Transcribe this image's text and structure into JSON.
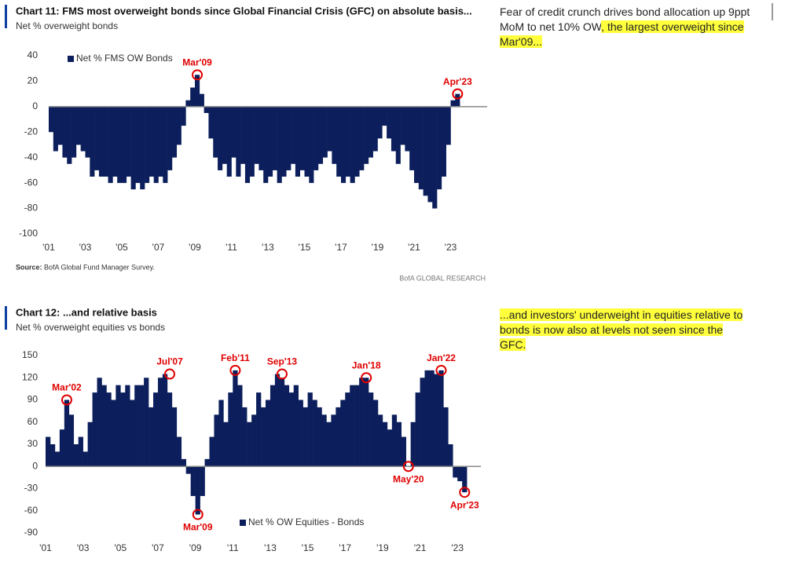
{
  "chart_data": [
    {
      "type": "bar",
      "title": "Chart 11: FMS most overweight bonds since Global Financial Crisis (GFC) on absolute basis...",
      "subtitle": "Net % overweight bonds",
      "series": [
        {
          "name": "Net % FMS OW Bonds",
          "color": "#0c1f5c",
          "values": [
            -20,
            -35,
            -30,
            -40,
            -45,
            -40,
            -30,
            -35,
            -40,
            -55,
            -50,
            -55,
            -55,
            -60,
            -55,
            -60,
            -60,
            -55,
            -65,
            -60,
            -65,
            -60,
            -55,
            -60,
            -55,
            -60,
            -50,
            -40,
            -30,
            -15,
            5,
            15,
            25,
            10,
            -5,
            -25,
            -40,
            -50,
            -45,
            -55,
            -40,
            -55,
            -45,
            -60,
            -55,
            -45,
            -50,
            -60,
            -55,
            -50,
            -60,
            -55,
            -50,
            -45,
            -55,
            -50,
            -55,
            -60,
            -50,
            -45,
            -40,
            -35,
            -45,
            -55,
            -60,
            -55,
            -60,
            -55,
            -50,
            -45,
            -40,
            -35,
            -25,
            -15,
            -25,
            -35,
            -45,
            -30,
            -35,
            -50,
            -60,
            -65,
            -70,
            -75,
            -80,
            -65,
            -55,
            -30,
            5,
            10
          ]
        }
      ],
      "x": [
        2001,
        2001.25,
        2001.5,
        2001.75,
        2002,
        2002.25,
        2002.5,
        2002.75,
        2003,
        2003.25,
        2003.5,
        2003.75,
        2004,
        2004.25,
        2004.5,
        2004.75,
        2005,
        2005.25,
        2005.5,
        2005.75,
        2006,
        2006.25,
        2006.5,
        2006.75,
        2007,
        2007.25,
        2007.5,
        2007.75,
        2008,
        2008.25,
        2008.5,
        2008.75,
        2009,
        2009.25,
        2009.5,
        2009.75,
        2010,
        2010.25,
        2010.5,
        2010.75,
        2011,
        2011.25,
        2011.5,
        2011.75,
        2012,
        2012.25,
        2012.5,
        2012.75,
        2013,
        2013.25,
        2013.5,
        2013.75,
        2014,
        2014.25,
        2014.5,
        2014.75,
        2015,
        2015.25,
        2015.5,
        2015.75,
        2016,
        2016.25,
        2016.5,
        2016.75,
        2017,
        2017.25,
        2017.5,
        2017.75,
        2018,
        2018.25,
        2018.5,
        2018.75,
        2019,
        2019.25,
        2019.5,
        2019.75,
        2020,
        2020.25,
        2020.5,
        2020.75,
        2021,
        2021.25,
        2021.5,
        2021.75,
        2022,
        2022.25,
        2022.5,
        2022.75,
        2023,
        2023.25
      ],
      "xlim": [
        2001,
        2025
      ],
      "ylim": [
        -100,
        40
      ],
      "yticks": [
        -100,
        -80,
        -60,
        -40,
        -20,
        0,
        20,
        40
      ],
      "xticks": [
        {
          "value": 2001,
          "label": "'01"
        },
        {
          "value": 2003,
          "label": "'03"
        },
        {
          "value": 2005,
          "label": "'05"
        },
        {
          "value": 2007,
          "label": "'07"
        },
        {
          "value": 2009,
          "label": "'09"
        },
        {
          "value": 2011,
          "label": "'11"
        },
        {
          "value": 2013,
          "label": "'13"
        },
        {
          "value": 2015,
          "label": "'15"
        },
        {
          "value": 2017,
          "label": "'17"
        },
        {
          "value": 2019,
          "label": "'19"
        },
        {
          "value": 2021,
          "label": "'21"
        },
        {
          "value": 2023,
          "label": "'23"
        }
      ],
      "legend": "upper left",
      "annotations": [
        {
          "text": "Mar'09",
          "x": 2009,
          "y": 25
        },
        {
          "text": "Apr'23",
          "x": 2023.25,
          "y": 10
        }
      ],
      "source_label": "Source:",
      "source": "BofA Global Fund Manager Survey.",
      "footer": "BofA GLOBAL RESEARCH",
      "note": [
        "Fear of credit crunch drives bond allocation up 9ppt MoM to net 10% OW",
        ", the largest overweight since Mar'09..."
      ]
    },
    {
      "type": "bar",
      "title": "Chart 12: ...and relative basis",
      "subtitle": "Net % overweight equities vs bonds",
      "series": [
        {
          "name": "Net % OW Equities - Bonds",
          "color": "#0c1f5c",
          "values": [
            40,
            30,
            20,
            50,
            90,
            70,
            30,
            40,
            20,
            60,
            100,
            120,
            110,
            100,
            90,
            110,
            100,
            110,
            90,
            110,
            110,
            120,
            80,
            100,
            120,
            125,
            100,
            80,
            40,
            10,
            -10,
            -40,
            -65,
            -40,
            10,
            40,
            70,
            90,
            60,
            100,
            130,
            110,
            80,
            60,
            70,
            100,
            80,
            90,
            110,
            125,
            120,
            110,
            100,
            110,
            90,
            80,
            100,
            90,
            80,
            70,
            60,
            70,
            80,
            90,
            100,
            110,
            110,
            120,
            120,
            100,
            90,
            70,
            60,
            50,
            70,
            60,
            40,
            0,
            60,
            100,
            120,
            130,
            130,
            125,
            130,
            80,
            30,
            -15,
            -20,
            -35
          ]
        }
      ],
      "x": [
        2001,
        2001.25,
        2001.5,
        2001.75,
        2002,
        2002.25,
        2002.5,
        2002.75,
        2003,
        2003.25,
        2003.5,
        2003.75,
        2004,
        2004.25,
        2004.5,
        2004.75,
        2005,
        2005.25,
        2005.5,
        2005.75,
        2006,
        2006.25,
        2006.5,
        2006.75,
        2007,
        2007.25,
        2007.5,
        2007.75,
        2008,
        2008.25,
        2008.5,
        2008.75,
        2009,
        2009.25,
        2009.5,
        2009.75,
        2010,
        2010.25,
        2010.5,
        2010.75,
        2011,
        2011.25,
        2011.5,
        2011.75,
        2012,
        2012.25,
        2012.5,
        2012.75,
        2013,
        2013.25,
        2013.5,
        2013.75,
        2014,
        2014.25,
        2014.5,
        2014.75,
        2015,
        2015.25,
        2015.5,
        2015.75,
        2016,
        2016.25,
        2016.5,
        2016.75,
        2017,
        2017.25,
        2017.5,
        2017.75,
        2018,
        2018.25,
        2018.5,
        2018.75,
        2019,
        2019.25,
        2019.5,
        2019.75,
        2020,
        2020.25,
        2020.5,
        2020.75,
        2021,
        2021.25,
        2021.5,
        2021.75,
        2022,
        2022.25,
        2022.5,
        2022.75,
        2023,
        2023.25
      ],
      "xlim": [
        2001,
        2024.25
      ],
      "ylim": [
        -90,
        150
      ],
      "yticks": [
        -90,
        -60,
        -30,
        0,
        30,
        60,
        90,
        120,
        150
      ],
      "xticks": [
        {
          "value": 2001,
          "label": "'01"
        },
        {
          "value": 2003,
          "label": "'03"
        },
        {
          "value": 2005,
          "label": "'05"
        },
        {
          "value": 2007,
          "label": "'07"
        },
        {
          "value": 2009,
          "label": "'09"
        },
        {
          "value": 2011,
          "label": "'11"
        },
        {
          "value": 2013,
          "label": "'13"
        },
        {
          "value": 2015,
          "label": "'15"
        },
        {
          "value": 2017,
          "label": "'17"
        },
        {
          "value": 2019,
          "label": "'19"
        },
        {
          "value": 2021,
          "label": "'21"
        },
        {
          "value": 2023,
          "label": "'23"
        }
      ],
      "legend": "lower center",
      "annotations": [
        {
          "text": "Mar'02",
          "x": 2002,
          "y": 90
        },
        {
          "text": "Jul'07",
          "x": 2007.5,
          "y": 125
        },
        {
          "text": "Mar'09",
          "x": 2009,
          "y": -65
        },
        {
          "text": "Feb'11",
          "x": 2011,
          "y": 130
        },
        {
          "text": "Sep'13",
          "x": 2013.5,
          "y": 125
        },
        {
          "text": "Jan'18",
          "x": 2018,
          "y": 120
        },
        {
          "text": "May'20",
          "x": 2020.25,
          "y": 0
        },
        {
          "text": "Jan'22",
          "x": 2022,
          "y": 130
        },
        {
          "text": "Apr'23",
          "x": 2023.25,
          "y": -35
        }
      ],
      "note": [
        "...and investors' underweight in equities relative to bonds is now also at levels not seen since the GFC."
      ]
    }
  ]
}
